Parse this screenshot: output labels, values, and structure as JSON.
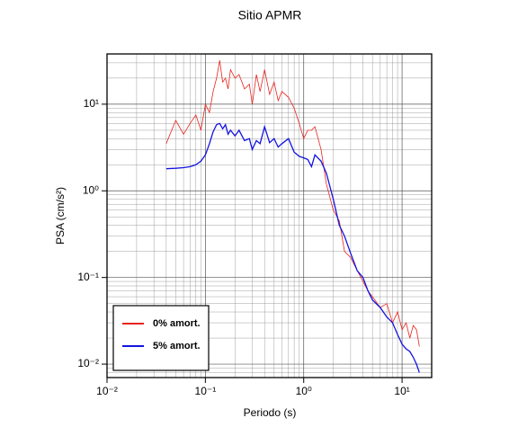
{
  "chart_data": {
    "type": "line",
    "title": "Sitio APMR",
    "x_label": "Periodo (s)",
    "y_label": "PSA (cm/s²)",
    "x_scale": "log",
    "y_scale": "log",
    "grid": true,
    "minor_grid": true,
    "legend": "lower-left",
    "xlim": [
      0.01,
      20
    ],
    "ylim": [
      0.007,
      38
    ],
    "xticks": [
      {
        "value": 0.01,
        "label": "10⁻²"
      },
      {
        "value": 0.1,
        "label": "10⁻¹"
      },
      {
        "value": 1,
        "label": "10⁰"
      },
      {
        "value": 10,
        "label": "10¹"
      }
    ],
    "yticks": [
      {
        "value": 0.01,
        "label": "10⁻²"
      },
      {
        "value": 0.1,
        "label": "10⁻¹"
      },
      {
        "value": 1,
        "label": "10⁰"
      },
      {
        "value": 10,
        "label": "10¹"
      }
    ],
    "x": [
      0.04,
      0.05,
      0.06,
      0.07,
      0.08,
      0.09,
      0.1,
      0.11,
      0.12,
      0.13,
      0.14,
      0.15,
      0.16,
      0.17,
      0.18,
      0.2,
      0.22,
      0.25,
      0.28,
      0.3,
      0.33,
      0.36,
      0.4,
      0.45,
      0.5,
      0.55,
      0.6,
      0.7,
      0.8,
      0.9,
      1.0,
      1.1,
      1.2,
      1.3,
      1.5,
      1.7,
      2.0,
      2.3,
      2.6,
      3.0,
      3.5,
      4.0,
      4.5,
      5.0,
      6.0,
      7.0,
      8.0,
      9.0,
      10,
      11,
      12,
      13,
      14,
      15
    ],
    "series": [
      {
        "name": "0% amort.",
        "color": "#e8231c",
        "width": 0.8,
        "values": [
          3.5,
          6.5,
          4.5,
          6,
          7.5,
          5,
          10,
          8,
          14,
          20,
          32,
          18,
          20,
          15,
          25,
          20,
          22,
          15,
          17,
          10,
          22,
          14,
          25,
          13,
          18,
          11,
          14,
          12,
          9,
          6,
          4,
          5,
          5,
          5.5,
          3,
          1.2,
          0.6,
          0.45,
          0.2,
          0.17,
          0.12,
          0.09,
          0.07,
          0.06,
          0.045,
          0.05,
          0.03,
          0.04,
          0.025,
          0.03,
          0.02,
          0.028,
          0.025,
          0.016
        ]
      },
      {
        "name": "5% amort.",
        "color": "#1414e0",
        "width": 1.3,
        "values": [
          1.8,
          1.82,
          1.85,
          1.9,
          2.0,
          2.2,
          2.6,
          3.5,
          4.8,
          5.8,
          6.0,
          5.2,
          5.8,
          4.5,
          5.0,
          4.3,
          5.0,
          3.8,
          4.0,
          3.0,
          3.8,
          3.5,
          5.5,
          3.6,
          4.0,
          3.2,
          3.5,
          4.0,
          2.8,
          2.5,
          2.4,
          2.3,
          1.9,
          2.6,
          2.2,
          1.6,
          0.8,
          0.4,
          0.3,
          0.19,
          0.12,
          0.1,
          0.07,
          0.055,
          0.045,
          0.035,
          0.03,
          0.022,
          0.017,
          0.015,
          0.014,
          0.012,
          0.01,
          0.008
        ]
      }
    ]
  }
}
